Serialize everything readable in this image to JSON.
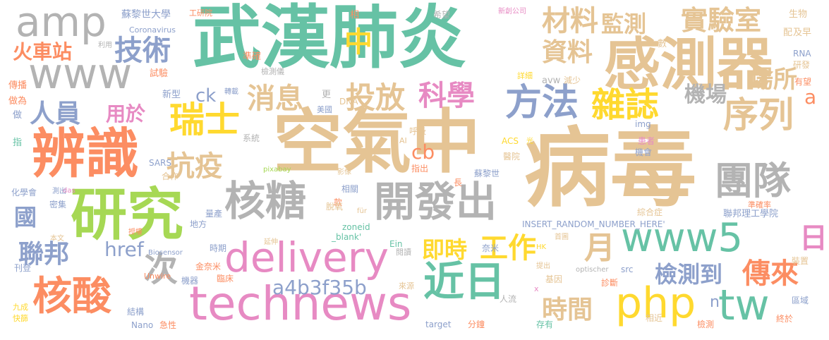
{
  "palette": {
    "green": "#66c2a5",
    "orange": "#fc8d62",
    "blue": "#8da0cb",
    "pink": "#e78ac3",
    "lime": "#a6d854",
    "yellow": "#ffd92f",
    "tan": "#e5c494",
    "gray": "#b3b3b3"
  },
  "words": [
    {
      "text": "武漢肺炎",
      "color": "green"
    },
    {
      "text": "病毒",
      "color": "tan"
    },
    {
      "text": "空氣中",
      "color": "tan"
    },
    {
      "text": "感測器",
      "color": "tan"
    },
    {
      "text": "研究",
      "color": "lime"
    },
    {
      "text": "辨識",
      "color": "orange"
    },
    {
      "text": "amp",
      "color": "gray"
    },
    {
      "text": "www",
      "color": "gray"
    },
    {
      "text": "technews",
      "color": "pink"
    },
    {
      "text": "delivery",
      "color": "pink"
    },
    {
      "text": "www5",
      "color": "green"
    },
    {
      "text": "php",
      "color": "yellow"
    },
    {
      "text": "tw",
      "color": "green"
    },
    {
      "text": "開發出",
      "color": "gray"
    },
    {
      "text": "核糖",
      "color": "gray"
    },
    {
      "text": "方法",
      "color": "blue"
    },
    {
      "text": "近日",
      "color": "green"
    },
    {
      "text": "核酸",
      "color": "orange"
    },
    {
      "text": "團隊",
      "color": "gray"
    },
    {
      "text": "序列",
      "color": "tan"
    },
    {
      "text": "瑞士",
      "color": "yellow"
    },
    {
      "text": "雜誌",
      "color": "yellow"
    },
    {
      "text": "實驗室",
      "color": "tan"
    },
    {
      "text": "材料",
      "color": "tan"
    },
    {
      "text": "監測",
      "color": "tan"
    },
    {
      "text": "資料",
      "color": "tan"
    },
    {
      "text": "技術",
      "color": "blue"
    },
    {
      "text": "火車站",
      "color": "orange"
    },
    {
      "text": "人員",
      "color": "blue"
    },
    {
      "text": "用於",
      "color": "pink"
    },
    {
      "text": "消息",
      "color": "tan"
    },
    {
      "text": "投放",
      "color": "tan"
    },
    {
      "text": "科學",
      "color": "pink"
    },
    {
      "text": "抗疫",
      "color": "tan"
    },
    {
      "text": "機場",
      "color": "gray"
    },
    {
      "text": "場所",
      "color": "tan"
    },
    {
      "text": "中",
      "color": "yellow"
    },
    {
      "text": "ck",
      "color": "blue"
    },
    {
      "text": "a",
      "color": "orange"
    },
    {
      "text": "國",
      "color": "blue"
    },
    {
      "text": "聯邦",
      "color": "blue"
    },
    {
      "text": "href",
      "color": "blue"
    },
    {
      "text": "次",
      "color": "gray"
    },
    {
      "text": "cb",
      "color": "orange"
    },
    {
      "text": "即時",
      "color": "yellow"
    },
    {
      "text": "工作",
      "color": "yellow"
    },
    {
      "text": "月",
      "color": "tan"
    },
    {
      "text": "日",
      "color": "pink"
    },
    {
      "text": "檢測到",
      "color": "blue"
    },
    {
      "text": "傳來",
      "color": "orange"
    },
    {
      "text": "a4b3f35b",
      "color": "blue"
    },
    {
      "text": "時間",
      "color": "tan"
    },
    {
      "text": "n",
      "color": "blue"
    },
    {
      "text": "蘇黎世大學",
      "color": "blue"
    },
    {
      "text": "工研院",
      "color": "orange"
    },
    {
      "text": "Coronavirus",
      "color": "blue"
    },
    {
      "text": "準確",
      "color": "orange"
    },
    {
      "text": "檢測儀",
      "color": "gray"
    },
    {
      "text": "試驗",
      "color": "orange"
    },
    {
      "text": "利用",
      "color": "gray"
    },
    {
      "text": "傳播",
      "color": "orange"
    },
    {
      "text": "做為",
      "color": "orange"
    },
    {
      "text": "做",
      "color": "blue"
    },
    {
      "text": "指",
      "color": "green"
    },
    {
      "text": "新型",
      "color": "blue"
    },
    {
      "text": "轉載",
      "color": "blue"
    },
    {
      "text": "更",
      "color": "gray"
    },
    {
      "text": "DNA",
      "color": "tan"
    },
    {
      "text": "美國",
      "color": "blue"
    },
    {
      "text": "系統",
      "color": "gray"
    },
    {
      "text": "呼吸",
      "color": "tan"
    },
    {
      "text": "AI",
      "color": "tan"
    },
    {
      "text": "SARS",
      "color": "blue"
    },
    {
      "text": "合作",
      "color": "tan"
    },
    {
      "text": "pixabay",
      "color": "lime"
    },
    {
      "text": "影像",
      "color": "tan"
    },
    {
      "text": "指出",
      "color": "orange"
    },
    {
      "text": "蘇黎世",
      "color": "blue"
    },
    {
      "text": "長",
      "color": "orange"
    },
    {
      "text": "ACS",
      "color": "yellow"
    },
    {
      "text": "光",
      "color": "yellow"
    },
    {
      "text": "醫院",
      "color": "tan"
    },
    {
      "text": "化學會",
      "color": "blue"
    },
    {
      "text": "測出",
      "color": "blue"
    },
    {
      "text": "das",
      "color": "pink"
    },
    {
      "text": "密集",
      "color": "blue"
    },
    {
      "text": "相關",
      "color": "blue"
    },
    {
      "text": "款",
      "color": "orange"
    },
    {
      "text": "脫氧",
      "color": "tan"
    },
    {
      "text": "für",
      "color": "tan"
    },
    {
      "text": "量產",
      "color": "blue"
    },
    {
      "text": "地方",
      "color": "blue"
    },
    {
      "text": "本文",
      "color": "tan"
    },
    {
      "text": "授權",
      "color": "orange"
    },
    {
      "text": "zoneid",
      "color": "green"
    },
    {
      "text": "_blank'",
      "color": "green"
    },
    {
      "text": "INSERT_RANDOM_NUMBER_HERE'",
      "color": "blue"
    },
    {
      "text": "時期",
      "color": "blue"
    },
    {
      "text": "延伸",
      "color": "tan"
    },
    {
      "text": "Ein",
      "color": "green"
    },
    {
      "text": "奈米",
      "color": "blue"
    },
    {
      "text": "HK",
      "color": "yellow"
    },
    {
      "text": "首圖",
      "color": "tan"
    },
    {
      "text": "金奈米",
      "color": "orange"
    },
    {
      "text": "Biosensor",
      "color": "blue"
    },
    {
      "text": "閱讀",
      "color": "gray"
    },
    {
      "text": "提出",
      "color": "tan"
    },
    {
      "text": "刊登",
      "color": "blue"
    },
    {
      "text": "Unwire",
      "color": "orange"
    },
    {
      "text": "機器",
      "color": "blue"
    },
    {
      "text": "臨床",
      "color": "orange"
    },
    {
      "text": "src",
      "color": "blue"
    },
    {
      "text": "基因",
      "color": "tan"
    },
    {
      "text": "optischer",
      "color": "gray"
    },
    {
      "text": "診斷",
      "color": "orange"
    },
    {
      "text": "來源",
      "color": "tan"
    },
    {
      "text": "x",
      "color": "pink"
    },
    {
      "text": "人流",
      "color": "gray"
    },
    {
      "text": "九成",
      "color": "yellow"
    },
    {
      "text": "快篩",
      "color": "yellow"
    },
    {
      "text": "結構",
      "color": "blue"
    },
    {
      "text": "Nano",
      "color": "blue"
    },
    {
      "text": "急性",
      "color": "orange"
    },
    {
      "text": "target",
      "color": "blue"
    },
    {
      "text": "分鐘",
      "color": "orange"
    },
    {
      "text": "存有",
      "color": "green"
    },
    {
      "text": "相近",
      "color": "tan"
    },
    {
      "text": "檢測",
      "color": "orange"
    },
    {
      "text": "終於",
      "color": "orange"
    },
    {
      "text": "區域",
      "color": "blue"
    },
    {
      "text": "裝置",
      "color": "tan"
    },
    {
      "text": "聯邦理工學院",
      "color": "blue"
    },
    {
      "text": "準確率",
      "color": "orange"
    },
    {
      "text": "綜合症",
      "color": "tan"
    },
    {
      "text": "機會",
      "color": "blue"
    },
    {
      "text": "患者",
      "color": "pink"
    },
    {
      "text": "img",
      "color": "blue"
    },
    {
      "text": "有望",
      "color": "orange"
    },
    {
      "text": "研發",
      "color": "tan"
    },
    {
      "text": "RNA",
      "color": "blue"
    },
    {
      "text": "avw",
      "color": "gray"
    },
    {
      "text": "減少",
      "color": "tan"
    },
    {
      "text": "詳細",
      "color": "yellow"
    },
    {
      "text": "希望",
      "color": "gray"
    },
    {
      "text": "新創公司",
      "color": "pink"
    },
    {
      "text": "相",
      "color": "orange"
    },
    {
      "text": "數",
      "color": "tan"
    },
    {
      "text": "生物",
      "color": "tan"
    },
    {
      "text": "配",
      "color": "tan"
    },
    {
      "text": "及早",
      "color": "tan"
    }
  ]
}
